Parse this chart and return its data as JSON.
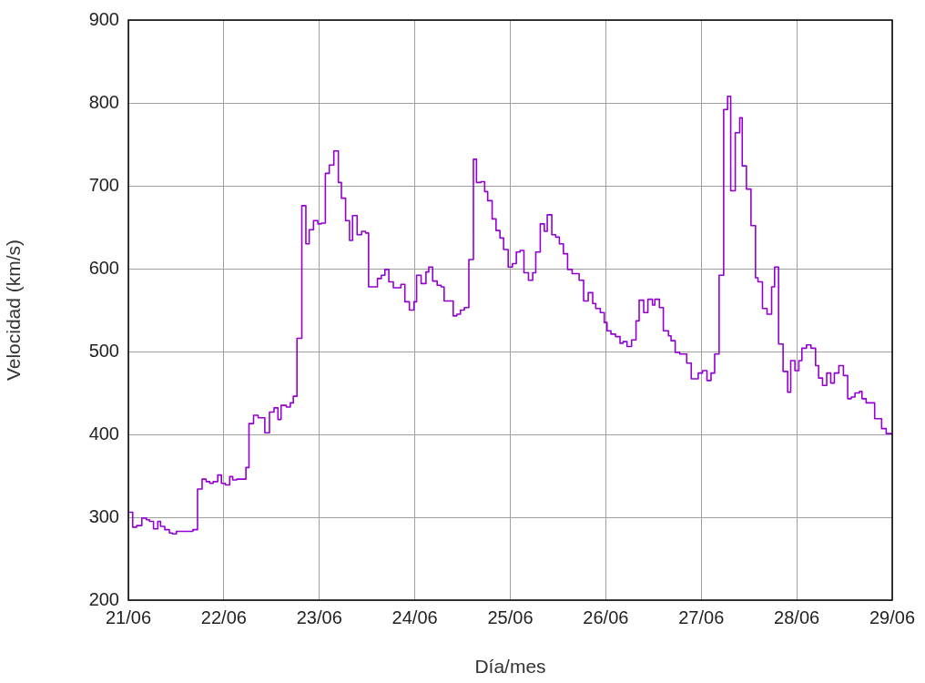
{
  "chart_data": {
    "type": "step",
    "xlabel": "Día/mes",
    "ylabel": "Velocidad (km/s)",
    "xlim": [
      "--06-21",
      "--06-29"
    ],
    "ylim": [
      200,
      900
    ],
    "xticks": [
      {
        "value": "--06-21",
        "label": "21/06"
      },
      {
        "value": "--06-22",
        "label": "22/06"
      },
      {
        "value": "--06-23",
        "label": "23/06"
      },
      {
        "value": "--06-24",
        "label": "24/06"
      },
      {
        "value": "--06-25",
        "label": "25/06"
      },
      {
        "value": "--06-26",
        "label": "26/06"
      },
      {
        "value": "--06-27",
        "label": "27/06"
      },
      {
        "value": "--06-28",
        "label": "28/06"
      },
      {
        "value": "--06-29",
        "label": "29/06"
      }
    ],
    "yticks": [
      200,
      300,
      400,
      500,
      600,
      700,
      800,
      900
    ],
    "grid": true,
    "line_style": "solid",
    "marker": "none",
    "series": [
      {
        "color": "#9400d3",
        "x": [
          "--06-21T00:00",
          "--06-21T01:05",
          "--06-21T02:05",
          "--06-21T03:23",
          "--06-21T04:32",
          "--06-21T05:18",
          "--06-21T06:19",
          "--06-21T07:24",
          "--06-21T08:05",
          "--06-21T09:09",
          "--06-21T10:18",
          "--06-21T11:05",
          "--06-21T12:04",
          "--06-21T16:13",
          "--06-21T17:23",
          "--06-21T18:32",
          "--06-21T19:32",
          "--06-21T20:28",
          "--06-21T21:19",
          "--06-21T22:28",
          "--06-21T23:23",
          "--06-22T00:23",
          "--06-22T01:28",
          "--06-22T02:14",
          "--06-22T03:14",
          "--06-22T05:33",
          "--06-22T06:19",
          "--06-22T07:28",
          "--06-22T08:37",
          "--06-22T10:18",
          "--06-22T11:28",
          "--06-22T12:37",
          "--06-22T13:36",
          "--06-22T14:23",
          "--06-22T15:42",
          "--06-22T16:42",
          "--06-22T17:28",
          "--06-22T18:23",
          "--06-22T19:36",
          "--06-22T20:37",
          "--06-22T21:27",
          "--06-22T22:32",
          "--06-22T23:37",
          "--06-23T00:32",
          "--06-23T01:31",
          "--06-23T02:30",
          "--06-23T03:39",
          "--06-23T04:47",
          "--06-23T05:33",
          "--06-23T06:36",
          "--06-23T07:35",
          "--06-23T08:21",
          "--06-23T09:30",
          "--06-23T10:38",
          "--06-23T11:37",
          "--06-23T12:23",
          "--06-23T14:36",
          "--06-23T15:35",
          "--06-23T16:29",
          "--06-23T17:28",
          "--06-23T18:36",
          "--06-23T20:30",
          "--06-23T21:30",
          "--06-23T22:38",
          "--06-23T23:47",
          "--06-24T00:27",
          "--06-24T01:35",
          "--06-24T02:48",
          "--06-24T03:30",
          "--06-24T04:29",
          "--06-24T05:37",
          "--06-24T06:36",
          "--06-24T07:22",
          "--06-24T09:39",
          "--06-24T10:34",
          "--06-24T11:28",
          "--06-24T12:27",
          "--06-24T13:35",
          "--06-24T14:44",
          "--06-24T15:30",
          "--06-24T16:38",
          "--06-24T17:33",
          "--06-24T18:19",
          "--06-24T19:26",
          "--06-24T20:25",
          "--06-24T21:24",
          "--06-24T22:19",
          "--06-24T23:28",
          "--06-25T00:32",
          "--06-25T01:31",
          "--06-25T02:27",
          "--06-25T03:26",
          "--06-25T04:34",
          "--06-25T05:38",
          "--06-25T06:24",
          "--06-25T07:32",
          "--06-25T08:33",
          "--06-25T09:17",
          "--06-25T10:26",
          "--06-25T11:25",
          "--06-25T12:20",
          "--06-25T13:21",
          "--06-25T14:24",
          "--06-25T15:33",
          "--06-25T17:18",
          "--06-25T18:26",
          "--06-25T19:35",
          "--06-25T20:43",
          "--06-25T21:29",
          "--06-25T22:38",
          "--06-25T23:37",
          "--06-26T00:19",
          "--06-26T01:18",
          "--06-26T02:27",
          "--06-26T03:35",
          "--06-26T04:21",
          "--06-26T05:20",
          "--06-26T06:29",
          "--06-26T07:36",
          "--06-26T08:23",
          "--06-26T09:32",
          "--06-26T10:35",
          "--06-26T11:44",
          "--06-26T12:20",
          "--06-26T13:29",
          "--06-26T14:28",
          "--06-26T15:46",
          "--06-26T16:24",
          "--06-26T17:27",
          "--06-26T18:36",
          "--06-26T20:21",
          "--06-26T21:29",
          "--06-26T23:14",
          "--06-27T00:19",
          "--06-27T01:26",
          "--06-27T02:27",
          "--06-27T03:22",
          "--06-27T04:29",
          "--06-27T05:38",
          "--06-27T06:37",
          "--06-27T07:24",
          "--06-27T08:33",
          "--06-27T09:40",
          "--06-27T10:18",
          "--06-27T11:21",
          "--06-27T12:30",
          "--06-27T13:38",
          "--06-27T14:15",
          "--06-27T15:23",
          "--06-27T16:32",
          "--06-27T17:41",
          "--06-27T18:26",
          "--06-27T19:26",
          "--06-27T20:34",
          "--06-27T21:43",
          "--06-27T22:29",
          "--06-27T23:33",
          "--06-28T00:32",
          "--06-28T01:18",
          "--06-28T02:27",
          "--06-28T03:35",
          "--06-28T04:44",
          "--06-28T05:30",
          "--06-28T06:29",
          "--06-28T07:32",
          "--06-28T08:33",
          "--06-28T09:27",
          "--06-28T10:35",
          "--06-28T11:44",
          "--06-28T12:48",
          "--06-28T13:42",
          "--06-28T14:38",
          "--06-28T15:46",
          "--06-28T16:24",
          "--06-28T17:27",
          "--06-28T19:35",
          "--06-28T21:20",
          "--06-28T22:29",
          "--06-29T00:00"
        ],
        "values": [
          306,
          288,
          290,
          299,
          297,
          295,
          286,
          295,
          289,
          285,
          281,
          280,
          283,
          285,
          334,
          346,
          343,
          341,
          343,
          351,
          341,
          339,
          349,
          345,
          346,
          360,
          413,
          423,
          420,
          402,
          427,
          432,
          418,
          435,
          433,
          438,
          446,
          516,
          676,
          630,
          647,
          658,
          654,
          655,
          715,
          725,
          742,
          704,
          685,
          658,
          634,
          664,
          641,
          645,
          643,
          578,
          588,
          592,
          599,
          584,
          577,
          581,
          560,
          550,
          560,
          592,
          582,
          596,
          602,
          585,
          580,
          578,
          561,
          543,
          545,
          550,
          553,
          611,
          732,
          704,
          705,
          693,
          682,
          660,
          646,
          637,
          623,
          602,
          606,
          620,
          622,
          595,
          586,
          595,
          620,
          654,
          645,
          665,
          641,
          638,
          630,
          618,
          599,
          594,
          586,
          561,
          571,
          558,
          552,
          547,
          535,
          525,
          521,
          518,
          510,
          512,
          506,
          514,
          537,
          562,
          547,
          563,
          556,
          563,
          553,
          525,
          519,
          513,
          499,
          497,
          486,
          467,
          474,
          477,
          465,
          474,
          497,
          592,
          792,
          808,
          694,
          764,
          782,
          724,
          696,
          652,
          589,
          584,
          552,
          545,
          578,
          602,
          509,
          476,
          451,
          489,
          477,
          489,
          504,
          508,
          504,
          483,
          468,
          459,
          474,
          462,
          474,
          483,
          471,
          443,
          445,
          450,
          452,
          443,
          438,
          419,
          407,
          401,
          401
        ]
      }
    ]
  }
}
